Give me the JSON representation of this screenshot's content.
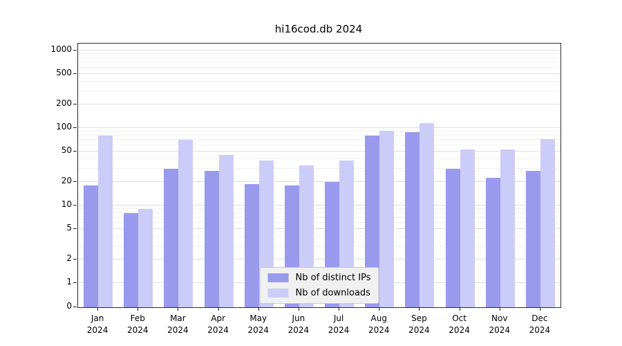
{
  "chart_data": {
    "type": "bar",
    "title": "hi16cod.db 2024",
    "scale": "symlog",
    "grid": true,
    "legend_position": "bottom-center",
    "x_year": "2024",
    "categories": [
      "Jan",
      "Feb",
      "Mar",
      "Apr",
      "May",
      "Jun",
      "Jul",
      "Aug",
      "Sep",
      "Oct",
      "Nov",
      "Dec"
    ],
    "y_ticks": [
      0,
      1,
      2,
      5,
      10,
      20,
      50,
      100,
      200,
      500,
      1000
    ],
    "ylim": [
      0,
      1000
    ],
    "series": [
      {
        "name": "Nb of distinct IPs",
        "color": "#9999ee",
        "values": [
          18,
          8,
          30,
          28,
          19,
          18,
          20,
          80,
          88,
          30,
          23,
          28
        ]
      },
      {
        "name": "Nb of downloads",
        "color": "#ccccf8",
        "values": [
          80,
          9,
          70,
          45,
          38,
          33,
          38,
          92,
          115,
          53,
          53,
          72
        ]
      }
    ]
  }
}
